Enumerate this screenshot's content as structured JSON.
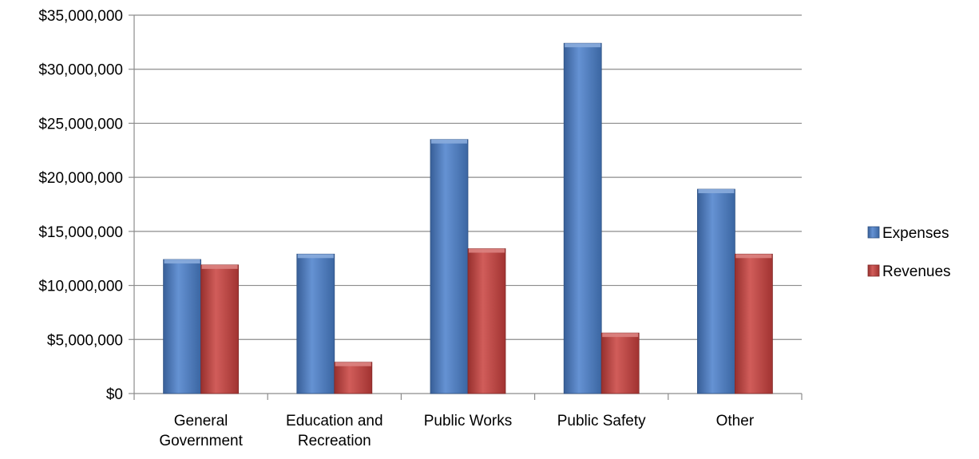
{
  "chart_data": {
    "type": "bar",
    "title": "",
    "xlabel": "",
    "ylabel": "",
    "categories": [
      [
        "General",
        "Government"
      ],
      [
        "Education and",
        "Recreation"
      ],
      [
        "Public Works"
      ],
      [
        "Public Safety"
      ],
      [
        "Other"
      ]
    ],
    "series": [
      {
        "name": "Expenses",
        "color": "#4a7fcb",
        "values": [
          12400000,
          12900000,
          23500000,
          32400000,
          18900000
        ]
      },
      {
        "name": "Revenues",
        "color": "#c9403d",
        "values": [
          11900000,
          2900000,
          13400000,
          5600000,
          12900000
        ]
      }
    ],
    "ylim": [
      0,
      35000000
    ],
    "yticks": [
      "$0",
      "$5,000,000",
      "$10,000,000",
      "$15,000,000",
      "$20,000,000",
      "$25,000,000",
      "$30,000,000",
      "$35,000,000"
    ],
    "ytick_values": [
      0,
      5000000,
      10000000,
      15000000,
      20000000,
      25000000,
      30000000,
      35000000
    ],
    "grid": true,
    "legend_position": "right"
  }
}
